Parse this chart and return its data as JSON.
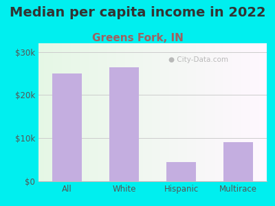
{
  "title": "Median per capita income in 2022",
  "subtitle": "Greens Fork, IN",
  "categories": [
    "All",
    "White",
    "Hispanic",
    "Multirace"
  ],
  "values": [
    25000,
    26500,
    4500,
    9000
  ],
  "bar_color": "#c4aee0",
  "bar_edgecolor": "none",
  "ylim": [
    0,
    32000
  ],
  "ytick_values": [
    0,
    10000,
    20000,
    30000
  ],
  "ytick_labels": [
    "$0",
    "$10k",
    "$20k",
    "$30k"
  ],
  "background_outer": "#00efef",
  "grid_color": "#cccccc",
  "title_fontsize": 14,
  "title_color": "#333333",
  "subtitle_fontsize": 11,
  "subtitle_color": "#a06060",
  "tick_color": "#555555",
  "tick_fontsize": 8.5,
  "watermark": "City-Data.com"
}
